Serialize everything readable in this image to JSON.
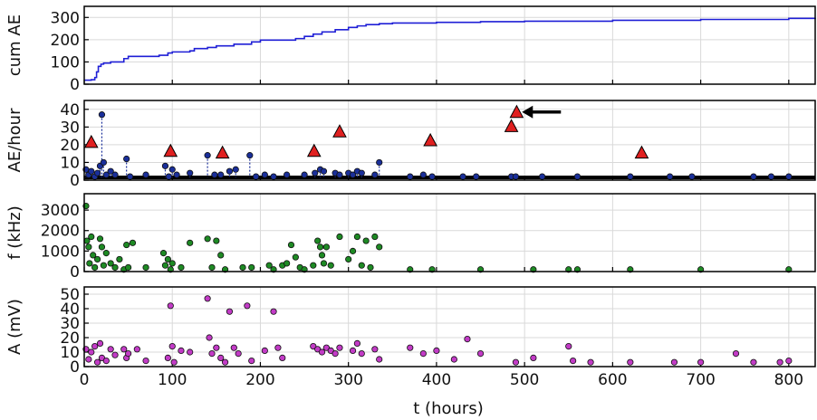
{
  "chart_data": [
    {
      "type": "line",
      "ylabel": "cum AE",
      "xlim": [
        0,
        830
      ],
      "ylim": [
        0,
        350
      ],
      "yticks": [
        "0",
        "100",
        "200",
        "300"
      ],
      "line_color": "#1f1fd6",
      "series": [
        {
          "x": [
            0,
            8,
            12,
            14,
            16,
            19,
            22,
            30,
            45,
            50,
            85,
            95,
            100,
            120,
            125,
            140,
            150,
            170,
            190,
            200,
            240,
            250,
            260,
            270,
            285,
            300,
            310,
            320,
            335,
            350,
            400,
            450,
            500,
            600,
            700,
            800,
            830
          ],
          "values": [
            18,
            20,
            30,
            55,
            80,
            90,
            95,
            100,
            115,
            125,
            130,
            140,
            145,
            150,
            160,
            165,
            172,
            180,
            190,
            198,
            205,
            215,
            225,
            235,
            245,
            255,
            262,
            268,
            272,
            275,
            278,
            281,
            283,
            287,
            291,
            296,
            298
          ]
        }
      ]
    },
    {
      "type": "scatter",
      "ylabel": "AE/hour",
      "xlim": [
        0,
        830
      ],
      "ylim": [
        0,
        45
      ],
      "yticks": [
        "0",
        "10",
        "20",
        "30",
        "40"
      ],
      "point_color": "#1a2f9a",
      "marker_color": "#e02020",
      "series": [
        {
          "x": [
            2,
            5,
            8,
            12,
            15,
            18,
            20,
            22,
            25,
            30,
            35,
            48,
            52,
            70,
            92,
            96,
            100,
            105,
            120,
            140,
            148,
            155,
            165,
            172,
            188,
            195,
            205,
            215,
            230,
            250,
            262,
            268,
            272,
            285,
            290,
            300,
            305,
            310,
            315,
            330,
            335,
            370,
            385,
            395,
            430,
            445,
            485,
            490,
            520,
            560,
            620,
            665,
            690,
            760,
            780,
            800
          ],
          "values": [
            6,
            3,
            5,
            2,
            4,
            8,
            37,
            10,
            3,
            5,
            3,
            12,
            2,
            3,
            8,
            2,
            6,
            3,
            4,
            14,
            3,
            3,
            5,
            6,
            14,
            2,
            3,
            2,
            3,
            3,
            4,
            6,
            5,
            4,
            3,
            4,
            3,
            5,
            4,
            3,
            10,
            2,
            3,
            2,
            2,
            2,
            2,
            2,
            2,
            2,
            2,
            2,
            2,
            2,
            2,
            2
          ]
        },
        {
          "name": "triangles",
          "x": [
            8,
            98,
            157,
            261,
            290,
            393,
            485,
            491,
            633
          ],
          "values": [
            21,
            16,
            15,
            16,
            27,
            22,
            30,
            38,
            15
          ]
        }
      ],
      "arrow": {
        "x": 495,
        "value": 38
      }
    },
    {
      "type": "scatter",
      "ylabel": "f (kHz)",
      "xlim": [
        0,
        830
      ],
      "ylim": [
        0,
        3800
      ],
      "yticks": [
        "0",
        "1000",
        "2000",
        "3000"
      ],
      "point_color": "#1e8a24",
      "series": [
        {
          "x": [
            2,
            3,
            5,
            6,
            8,
            10,
            12,
            15,
            18,
            20,
            22,
            25,
            30,
            35,
            40,
            45,
            48,
            50,
            55,
            70,
            90,
            92,
            95,
            98,
            100,
            110,
            120,
            140,
            145,
            150,
            155,
            160,
            180,
            190,
            210,
            215,
            225,
            230,
            235,
            240,
            245,
            250,
            260,
            265,
            268,
            270,
            272,
            275,
            280,
            290,
            300,
            305,
            310,
            315,
            320,
            325,
            330,
            335,
            370,
            395,
            450,
            510,
            550,
            560,
            620,
            700,
            800
          ],
          "values": [
            3200,
            1500,
            1200,
            400,
            1700,
            800,
            200,
            600,
            1600,
            1200,
            300,
            900,
            400,
            200,
            600,
            100,
            1300,
            200,
            1400,
            200,
            900,
            300,
            600,
            100,
            400,
            200,
            1400,
            1600,
            200,
            1500,
            800,
            100,
            200,
            200,
            300,
            100,
            300,
            400,
            1300,
            700,
            200,
            100,
            300,
            1500,
            1200,
            800,
            400,
            1200,
            300,
            1700,
            600,
            1000,
            1700,
            300,
            1500,
            200,
            1700,
            1200,
            100,
            100,
            100,
            100,
            100,
            100,
            100,
            100,
            100
          ]
        }
      ]
    },
    {
      "type": "scatter",
      "ylabel": "A (mV)",
      "xlabel": "t (hours)",
      "xlim": [
        0,
        830
      ],
      "ylim": [
        0,
        55
      ],
      "yticks": [
        "0",
        "10",
        "20",
        "30",
        "40",
        "50"
      ],
      "xticks": [
        "0",
        "100",
        "200",
        "300",
        "400",
        "500",
        "600",
        "700",
        "800"
      ],
      "point_color": "#c23bc6",
      "series": [
        {
          "x": [
            2,
            5,
            8,
            12,
            15,
            18,
            20,
            25,
            30,
            35,
            45,
            48,
            50,
            60,
            70,
            95,
            98,
            100,
            102,
            110,
            120,
            140,
            142,
            145,
            150,
            155,
            160,
            165,
            170,
            175,
            185,
            190,
            205,
            215,
            220,
            225,
            260,
            265,
            270,
            275,
            280,
            285,
            290,
            305,
            310,
            315,
            330,
            335,
            370,
            385,
            400,
            420,
            435,
            450,
            490,
            510,
            550,
            555,
            575,
            620,
            670,
            700,
            740,
            760,
            790,
            800
          ],
          "values": [
            12,
            5,
            10,
            14,
            3,
            16,
            6,
            4,
            12,
            8,
            12,
            6,
            9,
            12,
            4,
            6,
            42,
            14,
            3,
            11,
            10,
            47,
            20,
            9,
            13,
            6,
            3,
            38,
            13,
            9,
            42,
            4,
            11,
            38,
            13,
            6,
            14,
            12,
            10,
            13,
            11,
            9,
            13,
            11,
            16,
            9,
            12,
            5,
            13,
            9,
            11,
            5,
            19,
            9,
            3,
            6,
            14,
            4,
            3,
            3,
            3,
            3,
            9,
            3,
            3,
            4
          ]
        }
      ]
    }
  ]
}
